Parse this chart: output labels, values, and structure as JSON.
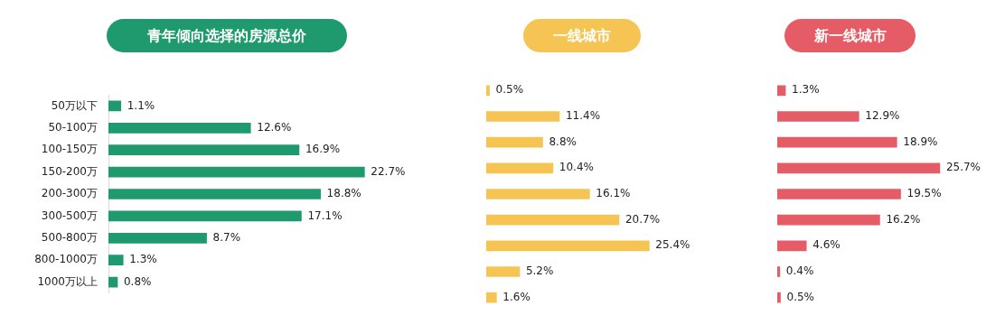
{
  "chart_data": [
    {
      "type": "bar",
      "orientation": "horizontal",
      "title": "青年倾向选择的房源总价",
      "categories": [
        "50万以下",
        "50-100万",
        "100-150万",
        "150-200万",
        "200-300万",
        "300-500万",
        "500-800万",
        "800-1000万",
        "1000万以上"
      ],
      "values": [
        1.1,
        12.6,
        16.9,
        22.7,
        18.8,
        17.1,
        8.7,
        1.3,
        0.8
      ],
      "value_labels": [
        "1.1%",
        "12.6%",
        "16.9%",
        "22.7%",
        "18.8%",
        "17.1%",
        "8.7%",
        "1.3%",
        "0.8%"
      ],
      "color": "#1e9a6e",
      "tick_labels": "y"
    },
    {
      "type": "bar",
      "orientation": "horizontal",
      "title": "一线城市",
      "categories": [
        null,
        null,
        null,
        null,
        null,
        null,
        null,
        null,
        null
      ],
      "values": [
        0.5,
        11.4,
        8.8,
        10.4,
        16.1,
        20.7,
        25.4,
        5.2,
        1.6
      ],
      "value_labels": [
        "0.5%",
        "11.4%",
        "8.8%",
        "10.4%",
        "16.1%",
        "20.7%",
        "25.4%",
        "5.2%",
        "1.6%"
      ],
      "color": "#f6c453",
      "tick_labels": false
    },
    {
      "type": "bar",
      "orientation": "horizontal",
      "title": "新一线城市",
      "categories": [
        null,
        null,
        null,
        null,
        null,
        null,
        null,
        null,
        null
      ],
      "values": [
        1.3,
        12.9,
        18.9,
        25.7,
        19.5,
        16.2,
        4.6,
        0.4,
        0.5
      ],
      "value_labels": [
        "1.3%",
        "12.9%",
        "18.9%",
        "25.7%",
        "19.5%",
        "16.2%",
        "4.6%",
        "0.4%",
        "0.5%"
      ],
      "color": "#e65c66",
      "tick_labels": false
    }
  ]
}
